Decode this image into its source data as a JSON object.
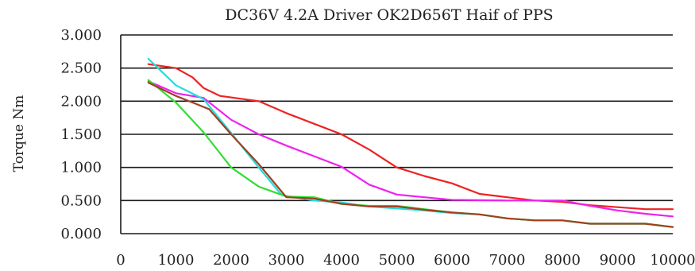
{
  "chart_data": {
    "type": "line",
    "title": "DC36V 4.2A Driver OK2D656T Haif of PPS",
    "xlabel": "",
    "ylabel": "Torque Nm",
    "xlim": [
      0,
      10000
    ],
    "ylim": [
      0,
      3
    ],
    "x_ticks": [
      "0",
      "1000",
      "2000",
      "3000",
      "4000",
      "5000",
      "6000",
      "7000",
      "8000",
      "9000",
      "10000"
    ],
    "y_ticks": [
      "0.000",
      "0.500",
      "1.000",
      "1.500",
      "2.000",
      "2.500",
      "3.000"
    ],
    "grid": "horizontal",
    "series": [
      {
        "color": "#ee2222",
        "points": [
          [
            500,
            2.56
          ],
          [
            1000,
            2.5
          ],
          [
            1300,
            2.36
          ],
          [
            1500,
            2.2
          ],
          [
            1800,
            2.08
          ],
          [
            2500,
            2.0
          ],
          [
            3000,
            1.82
          ],
          [
            3500,
            1.66
          ],
          [
            4000,
            1.5
          ],
          [
            4500,
            1.27
          ],
          [
            5000,
            1.0
          ],
          [
            5500,
            0.87
          ],
          [
            6000,
            0.76
          ],
          [
            6500,
            0.6
          ],
          [
            7000,
            0.55
          ],
          [
            7500,
            0.5
          ],
          [
            8000,
            0.48
          ],
          [
            8500,
            0.43
          ],
          [
            9000,
            0.4
          ],
          [
            9500,
            0.37
          ],
          [
            10000,
            0.37
          ]
        ]
      },
      {
        "color": "#ee22ee",
        "points": [
          [
            500,
            2.3
          ],
          [
            1000,
            2.12
          ],
          [
            1500,
            2.05
          ],
          [
            2000,
            1.72
          ],
          [
            2500,
            1.5
          ],
          [
            3000,
            1.33
          ],
          [
            3500,
            1.17
          ],
          [
            4000,
            1.01
          ],
          [
            4500,
            0.74
          ],
          [
            5000,
            0.59
          ],
          [
            5500,
            0.55
          ],
          [
            6000,
            0.51
          ],
          [
            7000,
            0.5
          ],
          [
            8000,
            0.5
          ],
          [
            8500,
            0.42
          ],
          [
            9000,
            0.35
          ],
          [
            9500,
            0.3
          ],
          [
            10000,
            0.26
          ]
        ]
      },
      {
        "color": "#22dddd",
        "points": [
          [
            500,
            2.64
          ],
          [
            1000,
            2.24
          ],
          [
            1500,
            2.03
          ],
          [
            2000,
            1.52
          ],
          [
            2500,
            1.0
          ],
          [
            2900,
            0.6
          ],
          [
            3000,
            0.57
          ],
          [
            3500,
            0.5
          ],
          [
            4000,
            0.47
          ],
          [
            4500,
            0.41
          ],
          [
            5000,
            0.38
          ],
          [
            5500,
            0.35
          ],
          [
            6000,
            0.31
          ],
          [
            6500,
            0.29
          ],
          [
            7000,
            0.23
          ],
          [
            7500,
            0.2
          ],
          [
            8000,
            0.2
          ],
          [
            8500,
            0.15
          ],
          [
            9000,
            0.15
          ],
          [
            9500,
            0.15
          ],
          [
            10000,
            0.1
          ]
        ]
      },
      {
        "color": "#33dd33",
        "points": [
          [
            500,
            2.32
          ],
          [
            1000,
            1.98
          ],
          [
            1500,
            1.53
          ],
          [
            2000,
            1.0
          ],
          [
            2500,
            0.71
          ],
          [
            3000,
            0.56
          ],
          [
            3500,
            0.55
          ],
          [
            4000,
            0.45
          ],
          [
            4500,
            0.42
          ],
          [
            5000,
            0.42
          ],
          [
            5500,
            0.37
          ],
          [
            6000,
            0.32
          ],
          [
            6500,
            0.29
          ],
          [
            7000,
            0.23
          ],
          [
            7500,
            0.2
          ],
          [
            8000,
            0.2
          ],
          [
            8500,
            0.15
          ],
          [
            9000,
            0.15
          ],
          [
            9500,
            0.15
          ],
          [
            10000,
            0.1
          ]
        ]
      },
      {
        "color": "#a04020",
        "points": [
          [
            500,
            2.28
          ],
          [
            1000,
            2.08
          ],
          [
            1300,
            1.98
          ],
          [
            1600,
            1.88
          ],
          [
            2000,
            1.5
          ],
          [
            2500,
            1.05
          ],
          [
            3000,
            0.55
          ],
          [
            3500,
            0.53
          ],
          [
            4000,
            0.45
          ],
          [
            4500,
            0.41
          ],
          [
            5000,
            0.41
          ],
          [
            5500,
            0.36
          ],
          [
            6000,
            0.32
          ],
          [
            6500,
            0.29
          ],
          [
            7000,
            0.23
          ],
          [
            7500,
            0.2
          ],
          [
            8000,
            0.2
          ],
          [
            8500,
            0.15
          ],
          [
            9000,
            0.15
          ],
          [
            9500,
            0.15
          ],
          [
            10000,
            0.1
          ]
        ]
      }
    ]
  }
}
